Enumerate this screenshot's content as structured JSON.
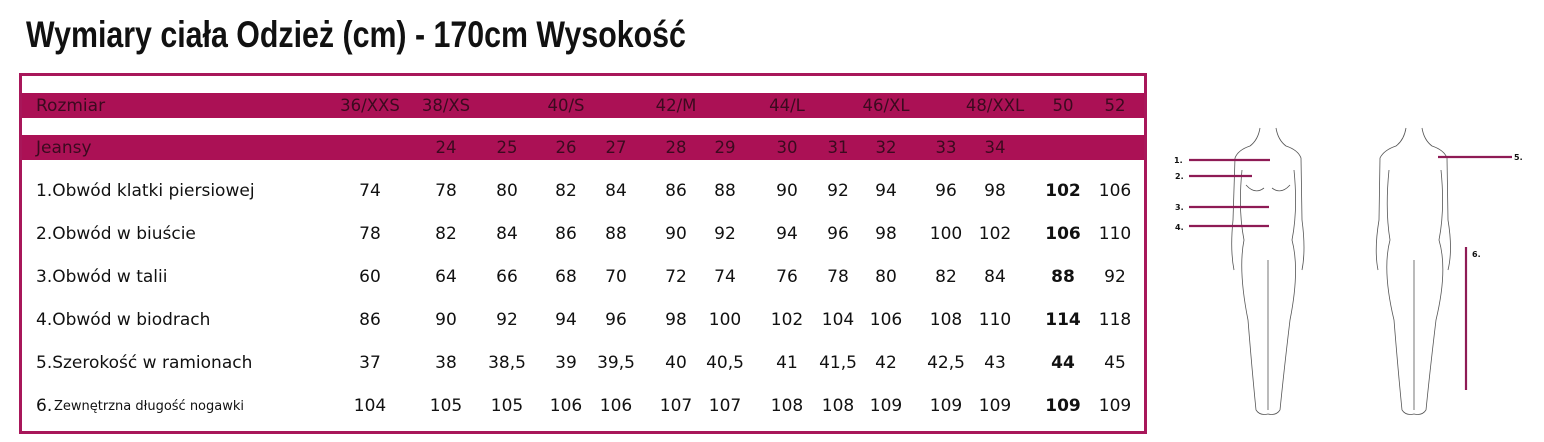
{
  "title": "Wymiary ciała Odzież (cm) - 170cm Wysokość",
  "accent_color": "#ab1155",
  "header": {
    "size_label": "Rozmiar",
    "sizes": [
      "36/XXS",
      "38/XS",
      "",
      "40/S",
      "",
      "42/M",
      "",
      "44/L",
      "",
      "46/XL",
      "",
      "48/XXL",
      "50",
      "52"
    ],
    "jeans_label": "Jeansy",
    "jeans": [
      "",
      "24",
      "25",
      "26",
      "27",
      "28",
      "29",
      "30",
      "31",
      "32",
      "33",
      "34",
      "",
      ""
    ]
  },
  "rows": [
    {
      "label": "1.Obwód klatki piersiowej",
      "values": [
        "74",
        "78",
        "80",
        "82",
        "84",
        "86",
        "88",
        "90",
        "92",
        "94",
        "96",
        "98",
        "102",
        "106"
      ]
    },
    {
      "label": "2.Obwód w biuście",
      "values": [
        "78",
        "82",
        "84",
        "86",
        "88",
        "90",
        "92",
        "94",
        "96",
        "98",
        "100",
        "102",
        "106",
        "110"
      ]
    },
    {
      "label": "3.Obwód w talii",
      "values": [
        "60",
        "64",
        "66",
        "68",
        "70",
        "72",
        "74",
        "76",
        "78",
        "80",
        "82",
        "84",
        "88",
        "92"
      ]
    },
    {
      "label": "4.Obwód w biodrach",
      "values": [
        "86",
        "90",
        "92",
        "94",
        "96",
        "98",
        "100",
        "102",
        "104",
        "106",
        "108",
        "110",
        "114",
        "118"
      ]
    },
    {
      "label": "5.Szerokość w ramionach",
      "values": [
        "37",
        "38",
        "38,5",
        "39",
        "39,5",
        "40",
        "40,5",
        "41",
        "41,5",
        "42",
        "42,5",
        "43",
        "44",
        "45"
      ]
    },
    {
      "label_prefix": "6.",
      "label": "Zewnętrzna długość nogawki",
      "values": [
        "104",
        "105",
        "105",
        "106",
        "106",
        "107",
        "107",
        "108",
        "108",
        "109",
        "109",
        "109",
        "109",
        "109"
      ]
    }
  ],
  "figure_markers": [
    "1.",
    "2.",
    "3.",
    "4.",
    "5.",
    "6."
  ]
}
